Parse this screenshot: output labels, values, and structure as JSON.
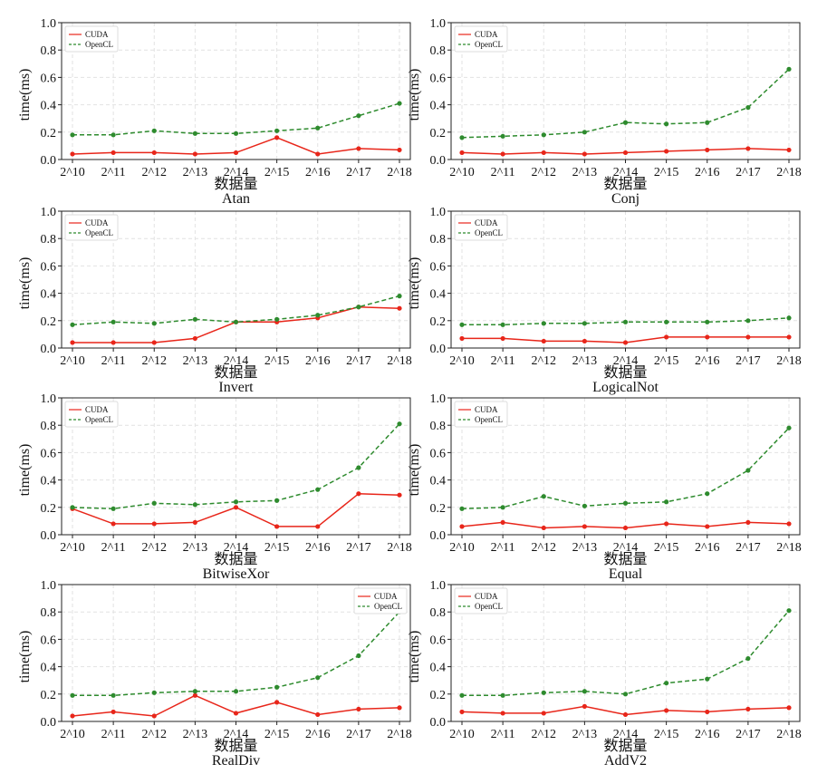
{
  "figure": {
    "y_axis_label": "time(ms)",
    "x_axis_label": "数据量",
    "y_ticks": [
      "0.0",
      "0.2",
      "0.4",
      "0.6",
      "0.8",
      "1.0"
    ],
    "legend": [
      "CUDA",
      "OpenCL"
    ],
    "colors": {
      "CUDA": "#e8261a",
      "OpenCL": "#2e8b2e",
      "grid": "#e2e2e2",
      "axis": "#222222"
    }
  },
  "chart_data": [
    {
      "type": "line",
      "title": "Atan",
      "xlabel": "数据量",
      "ylabel": "time(ms)",
      "ylim": [
        0,
        1.0
      ],
      "grid": true,
      "legend_position": "top-left",
      "categories": [
        "2^10",
        "2^11",
        "2^12",
        "2^13",
        "2^14",
        "2^15",
        "2^16",
        "2^17",
        "2^18"
      ],
      "series": [
        {
          "name": "CUDA",
          "values": [
            0.04,
            0.05,
            0.05,
            0.04,
            0.05,
            0.16,
            0.04,
            0.08,
            0.07
          ]
        },
        {
          "name": "OpenCL",
          "values": [
            0.18,
            0.18,
            0.21,
            0.19,
            0.19,
            0.21,
            0.23,
            0.32,
            0.41
          ]
        }
      ]
    },
    {
      "type": "line",
      "title": "Conj",
      "xlabel": "数据量",
      "ylabel": "time(ms)",
      "ylim": [
        0,
        1.0
      ],
      "grid": true,
      "legend_position": "top-left",
      "categories": [
        "2^10",
        "2^11",
        "2^12",
        "2^13",
        "2^14",
        "2^15",
        "2^16",
        "2^17",
        "2^18"
      ],
      "series": [
        {
          "name": "CUDA",
          "values": [
            0.05,
            0.04,
            0.05,
            0.04,
            0.05,
            0.06,
            0.07,
            0.08,
            0.07
          ]
        },
        {
          "name": "OpenCL",
          "values": [
            0.16,
            0.17,
            0.18,
            0.2,
            0.27,
            0.26,
            0.27,
            0.38,
            0.66
          ]
        }
      ]
    },
    {
      "type": "line",
      "title": "Invert",
      "xlabel": "数据量",
      "ylabel": "time(ms)",
      "ylim": [
        0,
        1.0
      ],
      "grid": true,
      "legend_position": "top-left",
      "categories": [
        "2^10",
        "2^11",
        "2^12",
        "2^13",
        "2^14",
        "2^15",
        "2^16",
        "2^17",
        "2^18"
      ],
      "series": [
        {
          "name": "CUDA",
          "values": [
            0.04,
            0.04,
            0.04,
            0.07,
            0.19,
            0.19,
            0.22,
            0.3,
            0.29
          ]
        },
        {
          "name": "OpenCL",
          "values": [
            0.17,
            0.19,
            0.18,
            0.21,
            0.19,
            0.21,
            0.24,
            0.3,
            0.38
          ]
        }
      ]
    },
    {
      "type": "line",
      "title": "LogicalNot",
      "xlabel": "数据量",
      "ylabel": "time(ms)",
      "ylim": [
        0,
        1.0
      ],
      "grid": true,
      "legend_position": "top-left",
      "categories": [
        "2^10",
        "2^11",
        "2^12",
        "2^13",
        "2^14",
        "2^15",
        "2^16",
        "2^17",
        "2^18"
      ],
      "series": [
        {
          "name": "CUDA",
          "values": [
            0.07,
            0.07,
            0.05,
            0.05,
            0.04,
            0.08,
            0.08,
            0.08,
            0.08
          ]
        },
        {
          "name": "OpenCL",
          "values": [
            0.17,
            0.17,
            0.18,
            0.18,
            0.19,
            0.19,
            0.19,
            0.2,
            0.22
          ]
        }
      ]
    },
    {
      "type": "line",
      "title": "BitwiseXor",
      "xlabel": "数据量",
      "ylabel": "time(ms)",
      "ylim": [
        0,
        1.0
      ],
      "grid": true,
      "legend_position": "top-left",
      "categories": [
        "2^10",
        "2^11",
        "2^12",
        "2^13",
        "2^14",
        "2^15",
        "2^16",
        "2^17",
        "2^18"
      ],
      "series": [
        {
          "name": "CUDA",
          "values": [
            0.19,
            0.08,
            0.08,
            0.09,
            0.2,
            0.06,
            0.06,
            0.3,
            0.29
          ]
        },
        {
          "name": "OpenCL",
          "values": [
            0.2,
            0.19,
            0.23,
            0.22,
            0.24,
            0.25,
            0.33,
            0.49,
            0.81
          ]
        }
      ]
    },
    {
      "type": "line",
      "title": "Equal",
      "xlabel": "数据量",
      "ylabel": "time(ms)",
      "ylim": [
        0,
        1.0
      ],
      "grid": true,
      "legend_position": "top-left",
      "categories": [
        "2^10",
        "2^11",
        "2^12",
        "2^13",
        "2^14",
        "2^15",
        "2^16",
        "2^17",
        "2^18"
      ],
      "series": [
        {
          "name": "CUDA",
          "values": [
            0.06,
            0.09,
            0.05,
            0.06,
            0.05,
            0.08,
            0.06,
            0.09,
            0.08
          ]
        },
        {
          "name": "OpenCL",
          "values": [
            0.19,
            0.2,
            0.28,
            0.21,
            0.23,
            0.24,
            0.3,
            0.47,
            0.78
          ]
        }
      ]
    },
    {
      "type": "line",
      "title": "RealDiv",
      "xlabel": "数据量",
      "ylabel": "time(ms)",
      "ylim": [
        0,
        1.0
      ],
      "grid": true,
      "legend_position": "top-right",
      "categories": [
        "2^10",
        "2^11",
        "2^12",
        "2^13",
        "2^14",
        "2^15",
        "2^16",
        "2^17",
        "2^18"
      ],
      "series": [
        {
          "name": "CUDA",
          "values": [
            0.04,
            0.07,
            0.04,
            0.19,
            0.06,
            0.14,
            0.05,
            0.09,
            0.1
          ]
        },
        {
          "name": "OpenCL",
          "values": [
            0.19,
            0.19,
            0.21,
            0.22,
            0.22,
            0.25,
            0.32,
            0.48,
            0.8
          ]
        }
      ]
    },
    {
      "type": "line",
      "title": "AddV2",
      "xlabel": "数据量",
      "ylabel": "time(ms)",
      "ylim": [
        0,
        1.0
      ],
      "grid": true,
      "legend_position": "top-left",
      "categories": [
        "2^10",
        "2^11",
        "2^12",
        "2^13",
        "2^14",
        "2^15",
        "2^16",
        "2^17",
        "2^18"
      ],
      "series": [
        {
          "name": "CUDA",
          "values": [
            0.07,
            0.06,
            0.06,
            0.11,
            0.05,
            0.08,
            0.07,
            0.09,
            0.1
          ]
        },
        {
          "name": "OpenCL",
          "values": [
            0.19,
            0.19,
            0.21,
            0.22,
            0.2,
            0.28,
            0.31,
            0.46,
            0.81
          ]
        }
      ]
    }
  ]
}
